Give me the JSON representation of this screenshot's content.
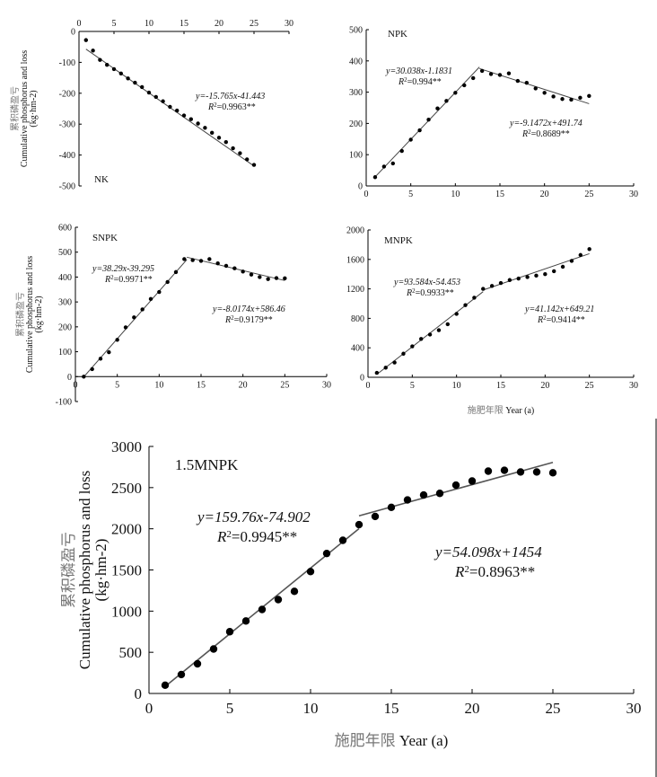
{
  "chart_data": [
    {
      "type": "scatter",
      "label": "NK",
      "xlim": [
        0,
        30
      ],
      "ylim": [
        -500,
        0
      ],
      "x_ticks": [
        "0",
        "5",
        "10",
        "15",
        "20",
        "25",
        "30"
      ],
      "y_ticks": [
        "0",
        "-100",
        "-200",
        "-300",
        "-400",
        "-500"
      ],
      "x_axis_position": "top",
      "ylabel_cn": "累积磷盈亏",
      "ylabel_en": "Cumulative phosphorus and loss",
      "ylabel_unit": "(kg·hm-2)",
      "x": [
        1,
        2,
        3,
        4,
        5,
        6,
        7,
        8,
        9,
        10,
        11,
        12,
        13,
        14,
        15,
        16,
        17,
        18,
        19,
        20,
        21,
        22,
        23,
        24,
        25
      ],
      "y": [
        -28,
        -62,
        -92,
        -108,
        -122,
        -136,
        -152,
        -166,
        -180,
        -198,
        -212,
        -226,
        -244,
        -256,
        -272,
        -284,
        -298,
        -312,
        -328,
        -344,
        -358,
        -378,
        -394,
        -414,
        -432
      ],
      "fits": [
        {
          "equation": "y=-15.765x-41.443",
          "r2": "R2=0.9963**",
          "x_range": [
            1,
            25
          ],
          "slope": -15.765,
          "intercept": -41.443
        }
      ]
    },
    {
      "type": "scatter",
      "label": "NPK",
      "xlim": [
        0,
        30
      ],
      "ylim": [
        0,
        500
      ],
      "x_ticks": [
        "0",
        "5",
        "10",
        "15",
        "20",
        "25",
        "30"
      ],
      "y_ticks": [
        "0",
        "100",
        "200",
        "300",
        "400",
        "500"
      ],
      "x": [
        1,
        2,
        3,
        4,
        5,
        6,
        7,
        8,
        9,
        10,
        11,
        12,
        13,
        14,
        15,
        16,
        17,
        18,
        19,
        20,
        21,
        22,
        23,
        24,
        25
      ],
      "y": [
        28,
        62,
        72,
        112,
        148,
        178,
        212,
        248,
        272,
        298,
        322,
        345,
        368,
        358,
        355,
        360,
        336,
        330,
        312,
        298,
        286,
        278,
        276,
        282,
        288
      ],
      "fits": [
        {
          "equation": "y=30.038x-1.1831",
          "r2": "R2=0.994**",
          "x_range": [
            1,
            12.7
          ],
          "slope": 30.038,
          "intercept": -1.1831
        },
        {
          "equation": "y=-9.1472x+491.74",
          "r2": "R2=0.8689**",
          "x_range": [
            12.7,
            25
          ],
          "slope": -9.1472,
          "intercept": 491.74
        }
      ]
    },
    {
      "type": "scatter",
      "label": "SNPK",
      "xlim": [
        0,
        30
      ],
      "ylim": [
        -100,
        600
      ],
      "x_ticks": [
        "0",
        "5",
        "10",
        "15",
        "20",
        "25",
        "30"
      ],
      "y_ticks": [
        "-100",
        "0",
        "100",
        "200",
        "300",
        "400",
        "500",
        "600"
      ],
      "ylabel_cn": "累积磷盈亏",
      "ylabel_en": "Cumulative phosphorus and loss",
      "ylabel_unit": "(kg·hm-2)",
      "x": [
        1,
        2,
        3,
        4,
        5,
        6,
        7,
        8,
        9,
        10,
        11,
        12,
        13,
        14,
        15,
        16,
        17,
        18,
        19,
        20,
        21,
        22,
        23,
        24,
        25
      ],
      "y": [
        0,
        30,
        72,
        98,
        148,
        198,
        238,
        270,
        312,
        340,
        380,
        420,
        472,
        468,
        465,
        472,
        455,
        445,
        435,
        422,
        410,
        400,
        392,
        396,
        395
      ],
      "fits": [
        {
          "equation": "y=38.29x-39.295",
          "r2": "R2=0.9971**",
          "x_range": [
            1,
            13.3
          ],
          "slope": 38.29,
          "intercept": -39.295
        },
        {
          "equation": "y=-8.0174x+586.46",
          "r2": "R2=0.9179**",
          "x_range": [
            13.3,
            25
          ],
          "slope": -8.0174,
          "intercept": 586.46
        }
      ]
    },
    {
      "type": "scatter",
      "label": "MNPK",
      "xlim": [
        0,
        30
      ],
      "ylim": [
        0,
        2000
      ],
      "x_ticks": [
        "0",
        "5",
        "10",
        "15",
        "20",
        "25",
        "30"
      ],
      "y_ticks": [
        "0",
        "400",
        "800",
        "1200",
        "1600",
        "2000"
      ],
      "xlabel_cn": "施肥年限",
      "xlabel_en": "Year (a)",
      "x": [
        1,
        2,
        3,
        4,
        5,
        6,
        7,
        8,
        9,
        10,
        11,
        12,
        13,
        14,
        15,
        16,
        17,
        18,
        19,
        20,
        21,
        22,
        23,
        24,
        25
      ],
      "y": [
        60,
        130,
        200,
        320,
        420,
        520,
        580,
        640,
        720,
        860,
        980,
        1080,
        1200,
        1240,
        1280,
        1320,
        1340,
        1360,
        1380,
        1400,
        1440,
        1500,
        1580,
        1660,
        1740
      ],
      "fits": [
        {
          "equation": "y=93.584x-54.453",
          "r2": "R2=0.9933**",
          "x_range": [
            1,
            13.0
          ],
          "slope": 93.584,
          "intercept": -54.453
        },
        {
          "equation": "y=41.142x+649.21",
          "r2": "R2=0.9414**",
          "x_range": [
            13.0,
            25
          ],
          "slope": 41.142,
          "intercept": 649.21
        }
      ]
    },
    {
      "type": "scatter",
      "label": "1.5MNPK",
      "xlim": [
        0,
        30
      ],
      "ylim": [
        0,
        3000
      ],
      "x_ticks": [
        "0",
        "5",
        "10",
        "15",
        "20",
        "25",
        "30"
      ],
      "y_ticks": [
        "0",
        "500",
        "1000",
        "1500",
        "2000",
        "2500",
        "3000"
      ],
      "ylabel_cn": "累积磷盈亏",
      "ylabel_en": "Cumulative phosphorus and loss",
      "ylabel_unit": "(kg·hm-2)",
      "xlabel_cn": "施肥年限",
      "xlabel_en": "Year (a)",
      "x": [
        1,
        2,
        3,
        4,
        5,
        6,
        7,
        8,
        9,
        10,
        11,
        12,
        13,
        14,
        15,
        16,
        17,
        18,
        19,
        20,
        21,
        22,
        23,
        24,
        25
      ],
      "y": [
        100,
        230,
        360,
        540,
        750,
        880,
        1020,
        1140,
        1240,
        1480,
        1700,
        1860,
        2050,
        2150,
        2260,
        2350,
        2410,
        2430,
        2530,
        2580,
        2700,
        2710,
        2690,
        2690,
        2680
      ],
      "fits": [
        {
          "equation": "y=159.76x-74.902",
          "r2": "R2=0.9945**",
          "x_range": [
            1,
            13.0
          ],
          "slope": 159.76,
          "intercept": -74.902
        },
        {
          "equation": "y=54.098x+1454",
          "r2": "R2=0.8963**",
          "x_range": [
            13.0,
            25
          ],
          "slope": 54.098,
          "intercept": 1454
        }
      ]
    }
  ]
}
